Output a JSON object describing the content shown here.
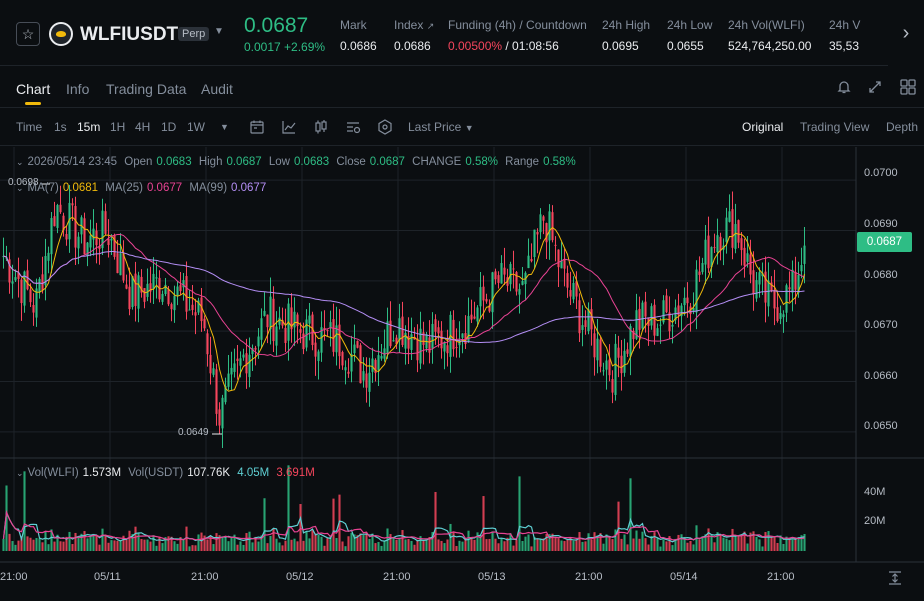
{
  "ticker": {
    "symbol": "WLFIUSDT",
    "badge": "Perp",
    "last_price": "0.0687",
    "change": "0.0017 +2.69%",
    "stats": [
      {
        "label": "Mark",
        "value": "0.0686"
      },
      {
        "label": "Index",
        "value": "0.0686"
      },
      {
        "label": "Funding (4h) / Countdown",
        "value_rate": "0.00500%",
        "value_countdown": " / 01:08:56"
      },
      {
        "label": "24h High",
        "value": "0.0695"
      },
      {
        "label": "24h Low",
        "value": "0.0655"
      },
      {
        "label": "24h Vol(WLFI)",
        "value": "524,764,250.00"
      },
      {
        "label": "24h V",
        "value": "35,53"
      }
    ]
  },
  "tabs": [
    "Chart",
    "Info",
    "Trading Data",
    "Audit"
  ],
  "toolbar": {
    "intervals": [
      "Time",
      "1s",
      "15m",
      "1H",
      "4H",
      "1D",
      "1W"
    ],
    "active_interval": "15m",
    "price_type": "Last Price",
    "views": [
      "Original",
      "Trading View",
      "Depth"
    ],
    "active_view": "Original"
  },
  "ohlc": {
    "date": "2026/05/14 23:45",
    "open_label": "Open",
    "open": "0.0683",
    "high_label": "High",
    "high": "0.0687",
    "low_label": "Low",
    "low": "0.0683",
    "close_label": "Close",
    "close": "0.0687",
    "change_label": "CHANGE",
    "change": "0.58%",
    "range_label": "Range",
    "range": "0.58%"
  },
  "ma": {
    "ma7_label": "MA(7)",
    "ma7": "0.0681",
    "ma25_label": "MA(25)",
    "ma25": "0.0677",
    "ma99_label": "MA(99)",
    "ma99": "0.0677"
  },
  "vol_legend": {
    "wlfi_label": "Vol(WLFI)",
    "wlfi": "1.573M",
    "usdt_label": "Vol(USDT)",
    "usdt": "107.76K",
    "ma_a": "4.05M",
    "ma_b": "3.691M"
  },
  "current_price_tag": "0.0687",
  "high_marker": "0.0698",
  "low_marker": "0.0649",
  "colors": {
    "up": "#2ebd85",
    "down": "#f6465d",
    "ma7": "#f0b90b",
    "ma25": "#e84393",
    "ma99": "#b48ef5",
    "vol_ma_a": "#5fcfd3",
    "vol_ma_b": "#e84393"
  },
  "chart_data": {
    "type": "candlestick",
    "price_axis_ticks": [
      "0.0700",
      "0.0690",
      "0.0680",
      "0.0670",
      "0.0660",
      "0.0650"
    ],
    "volume_axis_ticks": [
      "40M",
      "20M"
    ],
    "time_axis_ticks": [
      "21:00",
      "05/11",
      "21:00",
      "05/12",
      "21:00",
      "05/13",
      "21:00",
      "05/14",
      "21:00"
    ],
    "ylim": [
      0.0645,
      0.0705
    ],
    "close_anchors": [
      [
        0,
        0.0685
      ],
      [
        0.04,
        0.0675
      ],
      [
        0.065,
        0.0695
      ],
      [
        0.1,
        0.0688
      ],
      [
        0.13,
        0.069
      ],
      [
        0.16,
        0.0677
      ],
      [
        0.2,
        0.068
      ],
      [
        0.25,
        0.0672
      ],
      [
        0.27,
        0.0653
      ],
      [
        0.3,
        0.0665
      ],
      [
        0.33,
        0.0673
      ],
      [
        0.37,
        0.067
      ],
      [
        0.42,
        0.0668
      ],
      [
        0.45,
        0.0662
      ],
      [
        0.49,
        0.0672
      ],
      [
        0.53,
        0.0667
      ],
      [
        0.58,
        0.0672
      ],
      [
        0.62,
        0.068
      ],
      [
        0.65,
        0.0678
      ],
      [
        0.675,
        0.0693
      ],
      [
        0.7,
        0.068
      ],
      [
        0.73,
        0.067
      ],
      [
        0.76,
        0.0662
      ],
      [
        0.79,
        0.0672
      ],
      [
        0.82,
        0.0672
      ],
      [
        0.86,
        0.0678
      ],
      [
        0.89,
        0.069
      ],
      [
        0.915,
        0.0691
      ],
      [
        0.935,
        0.068
      ],
      [
        0.96,
        0.0675
      ],
      [
        0.985,
        0.0678
      ],
      [
        1.0,
        0.0687
      ]
    ]
  }
}
